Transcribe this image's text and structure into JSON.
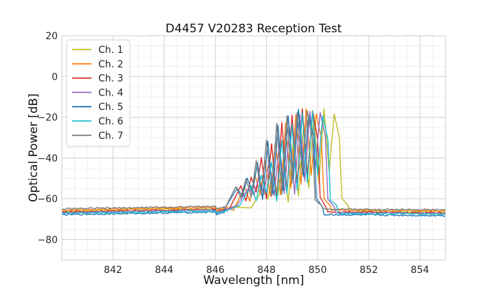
{
  "chart_data": {
    "type": "line",
    "title": "D4457 V20283 Reception Test",
    "xlabel": "Wavelength [nm]",
    "ylabel": "Optical Power [dB]",
    "xlim": [
      840,
      855
    ],
    "ylim": [
      -90,
      20
    ],
    "xticks": [
      842,
      844,
      846,
      848,
      850,
      852,
      854
    ],
    "xtick_labels": [
      "842",
      "844",
      "846",
      "848",
      "850",
      "852",
      "854"
    ],
    "yticks": [
      -80,
      -60,
      -40,
      -20,
      0,
      20
    ],
    "ytick_labels": [
      "−80",
      "−60",
      "−40",
      "−20",
      "0",
      "20"
    ],
    "grid": true,
    "minor_grid": true,
    "legend_position": "top-left",
    "series": [
      {
        "name": "Ch. 1",
        "color": "#bcbd22",
        "shift": 0.9,
        "base": -66.0
      },
      {
        "name": "Ch. 2",
        "color": "#ff7f0e",
        "shift": 0.2,
        "base": -65.5
      },
      {
        "name": "Ch. 3",
        "color": "#d62728",
        "shift": 0.05,
        "base": -66.5
      },
      {
        "name": "Ch. 4",
        "color": "#9467bd",
        "shift": 0.35,
        "base": -66.8
      },
      {
        "name": "Ch. 5",
        "color": "#1f77b4",
        "shift": -0.1,
        "base": -67.8
      },
      {
        "name": "Ch. 6",
        "color": "#17becf",
        "shift": 0.45,
        "base": -67.2
      },
      {
        "name": "Ch. 7",
        "color": "#7f7f7f",
        "shift": -0.15,
        "base": -65.0
      }
    ],
    "spectrum_template": {
      "peaks": [
        {
          "x": 846.95,
          "y": -55
        },
        {
          "x": 847.35,
          "y": -49
        },
        {
          "x": 847.75,
          "y": -41
        },
        {
          "x": 848.15,
          "y": -32
        },
        {
          "x": 848.55,
          "y": -24
        },
        {
          "x": 848.95,
          "y": -19
        },
        {
          "x": 849.35,
          "y": -17
        },
        {
          "x": 849.75,
          "y": -18
        }
      ],
      "valleys": [
        {
          "x": 846.5,
          "y": -64
        },
        {
          "x": 847.15,
          "y": -60
        },
        {
          "x": 847.55,
          "y": -58
        },
        {
          "x": 847.95,
          "y": -60
        },
        {
          "x": 848.35,
          "y": -59
        },
        {
          "x": 848.75,
          "y": -56
        },
        {
          "x": 849.15,
          "y": -52
        },
        {
          "x": 849.55,
          "y": -48
        }
      ],
      "right_edge": [
        {
          "x": 849.95,
          "y": -30
        },
        {
          "x": 850.05,
          "y": -60
        },
        {
          "x": 850.3,
          "y": -64
        }
      ],
      "left_rise": [
        {
          "x": 840.0,
          "y": 0
        },
        {
          "x": 846.0,
          "y": 1.3
        },
        {
          "x": 846.4,
          "y": 1.8
        }
      ],
      "right_fall_end": 855.0
    }
  }
}
